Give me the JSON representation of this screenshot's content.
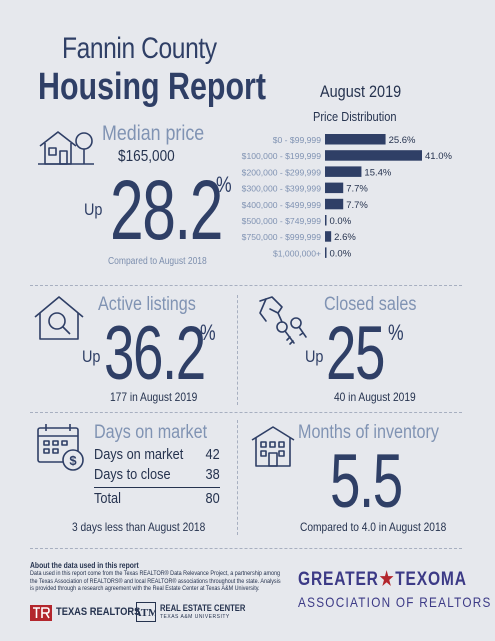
{
  "header": {
    "title_line1": "Fannin County",
    "title_line2": "Housing Report",
    "month": "August 2019"
  },
  "median_price": {
    "title": "Median price",
    "value": "$165,000",
    "change": "28.2",
    "percent_sign": "%",
    "direction": "Up",
    "comparison": "Compared to August 2018",
    "icon": "house-tree-icon"
  },
  "chart_data": {
    "type": "bar",
    "orientation": "horizontal",
    "title": "Price Distribution",
    "categories": [
      "$0 - $99,999",
      "$100,000 - $199,999",
      "$200,000 - $299,999",
      "$300,000 - $399,999",
      "$400,000 - $499,999",
      "$500,000 - $749,999",
      "$750,000 - $999,999",
      "$1,000,000+"
    ],
    "values": [
      25.6,
      41.0,
      15.4,
      7.7,
      7.7,
      0.0,
      2.6,
      0.0
    ],
    "value_labels": [
      "25.6%",
      "41.0%",
      "15.4%",
      "7.7%",
      "7.7%",
      "0.0%",
      "2.6%",
      "0.0%"
    ],
    "xlim": [
      0,
      41.0
    ],
    "bar_color": "#2f3f66"
  },
  "active_listings": {
    "title": "Active listings",
    "direction": "Up",
    "change": "36.2",
    "percent_sign": "%",
    "detail": "177 in August 2019",
    "icon": "house-magnifier-icon"
  },
  "closed_sales": {
    "title": "Closed sales",
    "direction": "Up",
    "change": "25",
    "percent_sign": "%",
    "detail": "40 in August 2019",
    "icon": "hand-keys-icon"
  },
  "days_on_market": {
    "title": "Days on market",
    "rows": [
      {
        "label": "Days on market",
        "value": "42"
      },
      {
        "label": "Days to close",
        "value": "38"
      }
    ],
    "total_label": "Total",
    "total_value": "80",
    "comparison": "3 days less than August 2018",
    "icon": "calendar-dollar-icon"
  },
  "months_inventory": {
    "title": "Months of inventory",
    "value": "5.5",
    "comparison": "Compared to 4.0 in August 2018",
    "icon": "building-icon"
  },
  "footer": {
    "about_title": "About the data used in this report",
    "about_text": "Data used in this report come from the Texas REALTOR® Data Relevance Project, a partnership among the Texas Association of REALTORS® and local REALTOR® associations throughout the state. Analysis is provided through a research agreement with the Real Estate Center at Texas A&M University.",
    "logo_texas_realtors": "TEXAS REALTORS",
    "logo_real_estate_center": "REAL ESTATE CENTER",
    "logo_real_estate_center_sub": "TEXAS A&M UNIVERSITY",
    "association_line1_a": "GREATER",
    "association_line1_b": "TEXOMA",
    "association_line2": "ASSOCIATION OF REALTORS",
    "association_color": "#3c3a86",
    "texas_realtors_color": "#b3262d"
  }
}
